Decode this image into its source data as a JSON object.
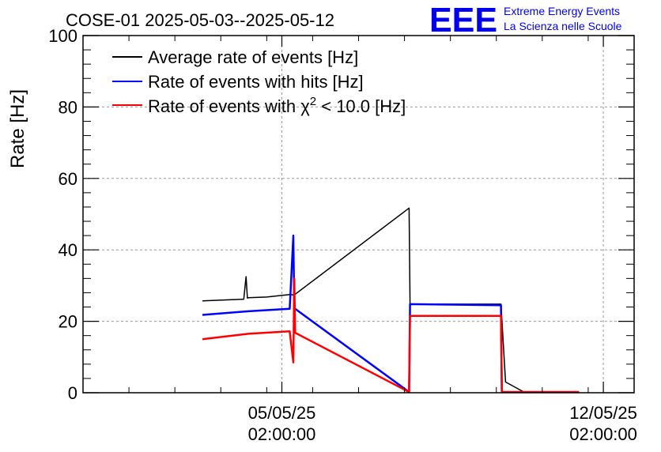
{
  "chart_data": {
    "type": "line",
    "title": "COSE-01 2025-05-03--2025-05-12",
    "xlabel": "",
    "ylabel": "Rate [Hz]",
    "ylim": [
      0,
      100
    ],
    "xlim_days": [
      0,
      12
    ],
    "yticks": [
      0,
      20,
      40,
      60,
      80,
      100
    ],
    "xticks": [
      {
        "day": 4.33,
        "date": "05/05/25",
        "time": "02:00:00"
      },
      {
        "day": 11.33,
        "date": "12/05/25",
        "time": "02:00:00"
      }
    ],
    "grid": true,
    "legend_position": "top-left",
    "series": [
      {
        "name": "Average rate of events [Hz]",
        "color": "#000000",
        "x": [
          2.6,
          3.5,
          3.55,
          3.58,
          3.6,
          4.0,
          4.5,
          4.6,
          7.1,
          7.12,
          9.1,
          9.2,
          9.6,
          10.8
        ],
        "y": [
          25.7,
          26.2,
          32.5,
          26.5,
          26.6,
          26.8,
          27.5,
          27.4,
          51.7,
          24.8,
          24.8,
          3.0,
          0.2,
          0.2
        ]
      },
      {
        "name": "Rate of events with hits [Hz]",
        "color": "#0000ff",
        "x": [
          2.6,
          3.6,
          4.5,
          4.58,
          4.6,
          4.62,
          7.1,
          7.12,
          9.1,
          9.12,
          10.8
        ],
        "y": [
          21.8,
          22.8,
          23.5,
          44.0,
          23.8,
          23.5,
          0.2,
          24.8,
          24.5,
          0.2,
          0.2
        ]
      },
      {
        "name": "Rate of events with χ² < 10.0 [Hz]",
        "color": "#ff0000",
        "x": [
          2.6,
          3.6,
          4.5,
          4.58,
          4.6,
          4.62,
          7.1,
          7.12,
          9.1,
          9.12,
          10.8
        ],
        "y": [
          15.0,
          16.5,
          17.2,
          8.5,
          32.0,
          16.8,
          0.2,
          21.5,
          21.5,
          0.2,
          0.2
        ]
      }
    ],
    "legend_labels": {
      "avg": "Average rate of events [Hz]",
      "hits": "Rate of events with hits [Hz]",
      "chi_prefix": "Rate of events with ",
      "chi_symbol": "χ",
      "chi_sup": "2",
      "chi_suffix": " < 10.0 [Hz]"
    }
  },
  "logo": {
    "mark": "EEE",
    "line1": "Extreme Energy Events",
    "line2": "La Scienza nelle Scuole",
    "color": "#0000ee"
  }
}
